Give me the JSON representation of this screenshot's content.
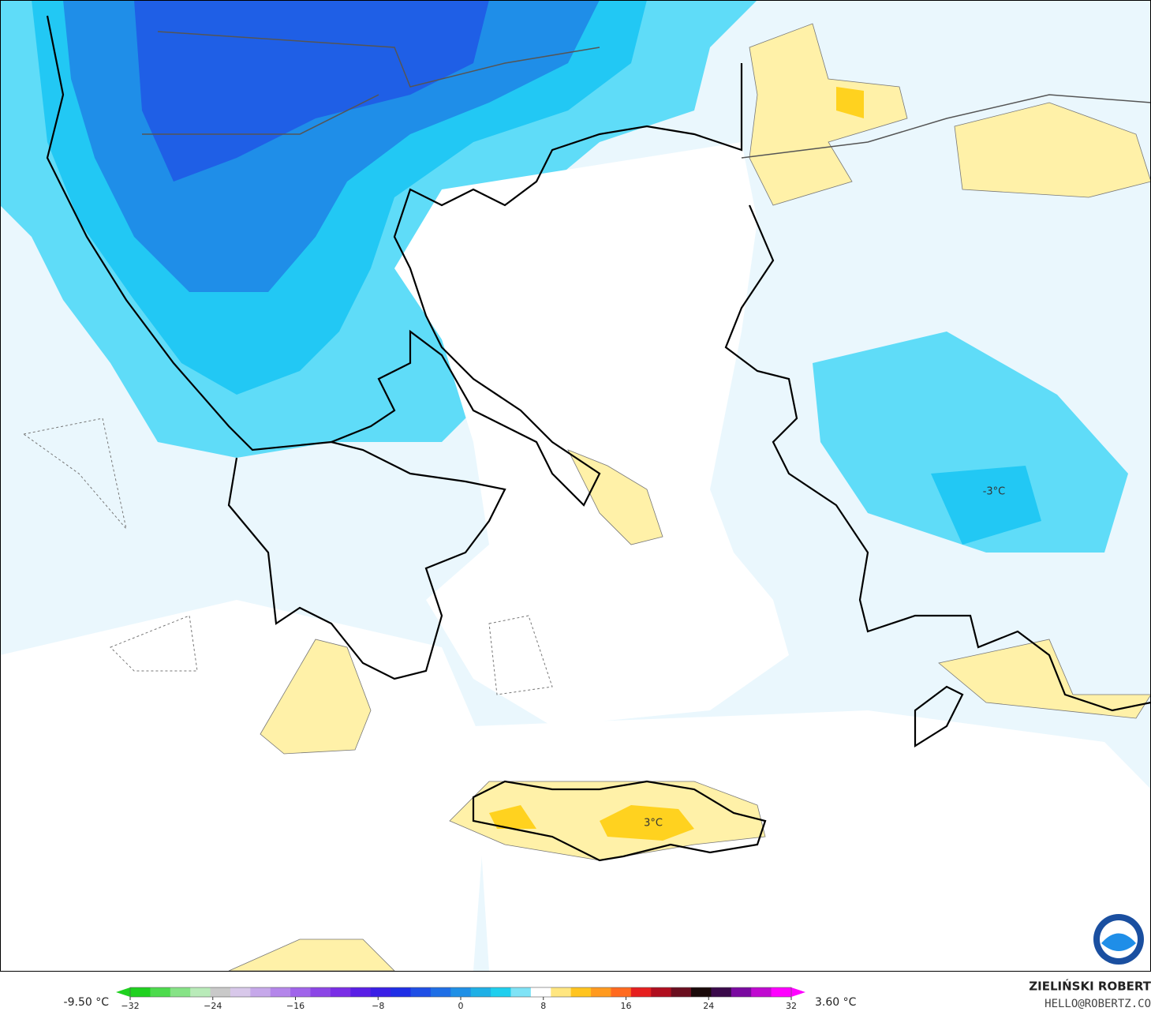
{
  "map": {
    "labels": [
      "-3°C",
      "3°C"
    ]
  },
  "colorbar": {
    "min_label": "-9.50 °C",
    "max_label": "3.60 °C",
    "range": [
      -32,
      32
    ],
    "ticks": [
      {
        "value": -32,
        "label": "−32"
      },
      {
        "value": -24,
        "label": "−24"
      },
      {
        "value": -16,
        "label": "−16"
      },
      {
        "value": -8,
        "label": "−8"
      },
      0,
      8,
      16,
      24,
      32
    ],
    "colors": [
      "#1fd11f",
      "#4ddb4d",
      "#86e386",
      "#b9ebb9",
      "#c9c9c9",
      "#d8c8ea",
      "#c6a8ea",
      "#b486ea",
      "#a064ea",
      "#8c46e6",
      "#7a2ee6",
      "#5a1fe6",
      "#3a1fe6",
      "#1f2ee6",
      "#1f4fe6",
      "#1f6fe6",
      "#1f90e6",
      "#1fb0e6",
      "#1fcfee",
      "#7fe3f6",
      "#ffffff",
      "#ffe680",
      "#ffc41f",
      "#ff9a1f",
      "#ff6a1f",
      "#e61f1f",
      "#b00f1f",
      "#6a0f1f",
      "#1a0a0a",
      "#3a0a4a",
      "#7a0aa0",
      "#c00ad0",
      "#ff00ff"
    ]
  },
  "credits": {
    "author": "ZIELIŃSKI ROBERT",
    "email": "HELLO@ROBERTZ.CO"
  }
}
